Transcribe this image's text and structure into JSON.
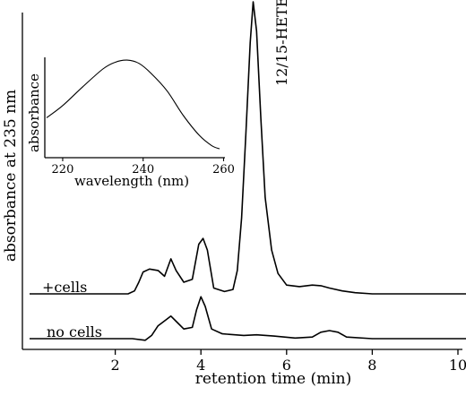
{
  "chart_data": [
    {
      "type": "line",
      "title": "",
      "xlabel": "retention time (min)",
      "ylabel": "absorbance at 235 nm",
      "xlim": [
        0,
        10.2
      ],
      "xticks": [
        2,
        4,
        6,
        8,
        10
      ],
      "grid": false,
      "annotations": [
        {
          "text": "12/15-HETE",
          "x": 5.25,
          "orientation": "vertical"
        }
      ],
      "series": [
        {
          "name": "+cells",
          "points": [
            [
              0.0,
              0.0
            ],
            [
              2.3,
              0.0
            ],
            [
              2.45,
              0.01
            ],
            [
              2.55,
              0.04
            ],
            [
              2.65,
              0.075
            ],
            [
              2.8,
              0.085
            ],
            [
              3.0,
              0.08
            ],
            [
              3.15,
              0.06
            ],
            [
              3.3,
              0.12
            ],
            [
              3.42,
              0.08
            ],
            [
              3.6,
              0.04
            ],
            [
              3.8,
              0.05
            ],
            [
              3.95,
              0.17
            ],
            [
              4.05,
              0.19
            ],
            [
              4.15,
              0.15
            ],
            [
              4.3,
              0.02
            ],
            [
              4.55,
              0.008
            ],
            [
              4.75,
              0.015
            ],
            [
              4.85,
              0.08
            ],
            [
              4.95,
              0.26
            ],
            [
              5.05,
              0.55
            ],
            [
              5.15,
              0.86
            ],
            [
              5.22,
              1.0
            ],
            [
              5.3,
              0.9
            ],
            [
              5.4,
              0.6
            ],
            [
              5.5,
              0.33
            ],
            [
              5.65,
              0.15
            ],
            [
              5.8,
              0.07
            ],
            [
              6.0,
              0.03
            ],
            [
              6.3,
              0.025
            ],
            [
              6.6,
              0.03
            ],
            [
              6.8,
              0.028
            ],
            [
              7.0,
              0.02
            ],
            [
              7.3,
              0.01
            ],
            [
              7.6,
              0.004
            ],
            [
              8.0,
              0.0
            ],
            [
              10.2,
              0.0
            ]
          ]
        },
        {
          "name": "no cells",
          "points": [
            [
              0.0,
              0.0
            ],
            [
              2.4,
              0.0
            ],
            [
              2.7,
              -0.005
            ],
            [
              2.85,
              0.01
            ],
            [
              3.0,
              0.04
            ],
            [
              3.2,
              0.06
            ],
            [
              3.3,
              0.07
            ],
            [
              3.45,
              0.05
            ],
            [
              3.6,
              0.03
            ],
            [
              3.8,
              0.035
            ],
            [
              3.9,
              0.09
            ],
            [
              4.0,
              0.13
            ],
            [
              4.1,
              0.1
            ],
            [
              4.25,
              0.03
            ],
            [
              4.5,
              0.015
            ],
            [
              5.0,
              0.01
            ],
            [
              5.3,
              0.012
            ],
            [
              5.7,
              0.008
            ],
            [
              6.2,
              0.002
            ],
            [
              6.6,
              0.005
            ],
            [
              6.8,
              0.02
            ],
            [
              7.0,
              0.025
            ],
            [
              7.2,
              0.02
            ],
            [
              7.4,
              0.005
            ],
            [
              8.0,
              0.0
            ],
            [
              10.2,
              0.0
            ]
          ]
        }
      ]
    },
    {
      "type": "line",
      "title": "",
      "xlabel": "wavelength (nm)",
      "ylabel": "absorbance",
      "xlim": [
        215,
        262
      ],
      "xticks": [
        220,
        240,
        260
      ],
      "grid": false,
      "series": [
        {
          "name": "",
          "points": [
            [
              216,
              0.36
            ],
            [
              220,
              0.47
            ],
            [
              225,
              0.64
            ],
            [
              230,
              0.8
            ],
            [
              233,
              0.86
            ],
            [
              236,
              0.88
            ],
            [
              239,
              0.85
            ],
            [
              242,
              0.76
            ],
            [
              246,
              0.6
            ],
            [
              250,
              0.38
            ],
            [
              254,
              0.2
            ],
            [
              257,
              0.11
            ],
            [
              259,
              0.08
            ]
          ]
        }
      ]
    }
  ]
}
